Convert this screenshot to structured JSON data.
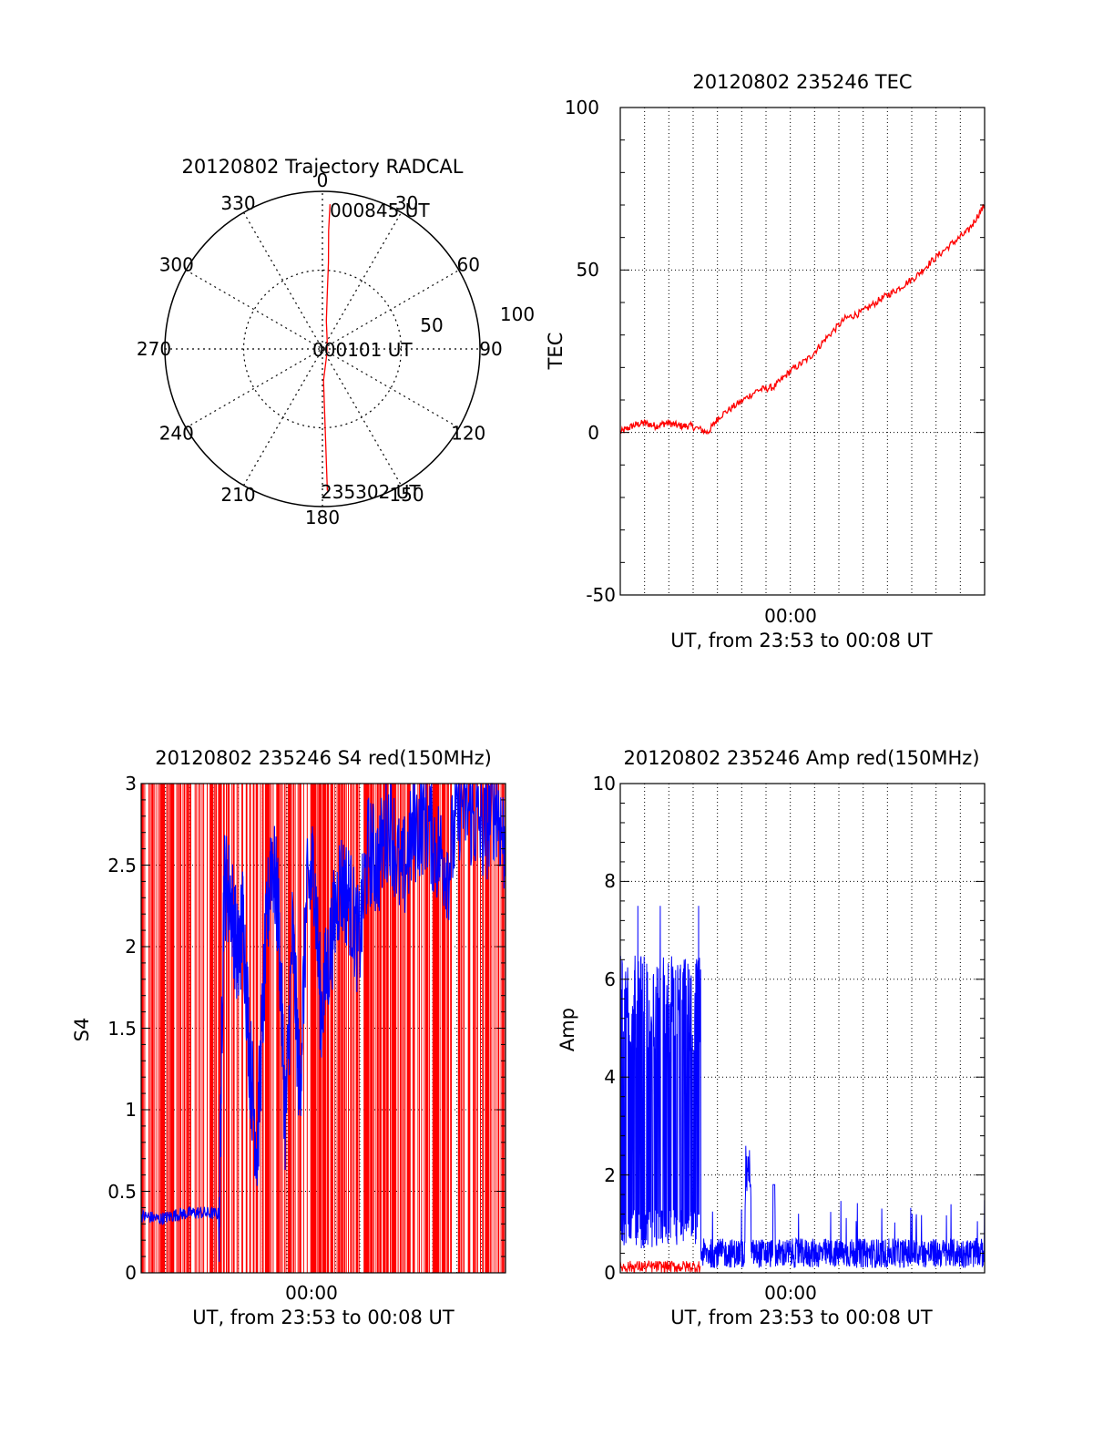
{
  "colors": {
    "red": "#ff0000",
    "blue": "#0000ff",
    "axis": "#000000",
    "grid": "#000000"
  },
  "chart_data": [
    {
      "id": "trajectory",
      "type": "polar",
      "title": "20120802 Trajectory RADCAL",
      "azimuth_labels": [
        "0",
        "30",
        "60",
        "90",
        "120",
        "150",
        "180",
        "210",
        "240",
        "270",
        "300",
        "330"
      ],
      "radial_labels": [
        "50",
        "100"
      ],
      "rlim": [
        0,
        100
      ],
      "grid": true,
      "start_label": "235302 UT",
      "mid_label": "000101 UT",
      "end_label": "000845 UT",
      "track": [
        {
          "az": 3,
          "r": 92
        },
        {
          "az": 3,
          "r": 75
        },
        {
          "az": 4,
          "r": 55
        },
        {
          "az": 5,
          "r": 35
        },
        {
          "az": 8,
          "r": 18
        },
        {
          "az": 30,
          "r": 6
        },
        {
          "az": 135,
          "r": 4
        },
        {
          "az": 178,
          "r": 20
        },
        {
          "az": 178,
          "r": 45
        },
        {
          "az": 178,
          "r": 70
        },
        {
          "az": 178,
          "r": 90
        }
      ]
    },
    {
      "id": "tec",
      "type": "line",
      "title": "20120802 235246 TEC",
      "ylabel": "TEC",
      "xlabel": "UT, from 23:53 to 00:08 UT",
      "x_tick_labels": [
        "00:00"
      ],
      "y_ticks": [
        "100",
        "50",
        "0",
        "-50"
      ],
      "ylim": [
        -50,
        100
      ],
      "xlim_minutes": [
        0,
        15.4
      ],
      "grid": true,
      "series": [
        {
          "color": "red",
          "x": [
            0,
            0.5,
            1,
            1.5,
            2,
            2.5,
            3,
            3.7,
            4.2,
            5,
            5.8,
            6.5,
            7.2,
            8,
            8.7,
            9.5,
            10.2,
            11,
            11.7,
            12.5,
            13.2,
            14,
            14.7,
            15.4
          ],
          "y": [
            0,
            2,
            3,
            2,
            3,
            2,
            2,
            0,
            5,
            9,
            13,
            14,
            19,
            23,
            29,
            35,
            37,
            41,
            44,
            48,
            53,
            58,
            62,
            70
          ]
        }
      ]
    },
    {
      "id": "s4",
      "type": "line",
      "title": "20120802 235246 S4 red(150MHz)",
      "ylabel": "S4",
      "xlabel": "UT, from 23:53 to 00:08 UT",
      "x_tick_labels": [
        "00:00"
      ],
      "y_ticks": [
        "3",
        "2.5",
        "2",
        "1.5",
        "1",
        "0.5",
        "0"
      ],
      "ylim": [
        0,
        3
      ],
      "xlim_minutes": [
        0,
        15.4
      ],
      "grid": true,
      "series": [
        {
          "color": "red",
          "pattern": "vertical spikes between 0 and 3 across the whole range"
        },
        {
          "color": "blue",
          "x": [
            0,
            0.8,
            1.6,
            2.4,
            3.3,
            3.5,
            3.8,
            4.1,
            4.3,
            4.6,
            4.9,
            5.2,
            5.5,
            5.8,
            6.1,
            6.4,
            6.7,
            7.0,
            7.3,
            7.6,
            8.0,
            8.4,
            8.8,
            9.2,
            9.6,
            10.0,
            10.5,
            11.0,
            11.5,
            12.0,
            12.5,
            13.0,
            13.5,
            14.0,
            14.5,
            15.0,
            15.4
          ],
          "y": [
            0.35,
            0.33,
            0.36,
            0.37,
            0.36,
            2.4,
            2.3,
            1.9,
            2.2,
            1.3,
            0.75,
            1.8,
            2.6,
            2.2,
            0.9,
            2.1,
            1.1,
            2.3,
            2.5,
            1.6,
            2.0,
            2.4,
            2.3,
            2.0,
            2.6,
            2.5,
            2.8,
            2.4,
            2.7,
            2.8,
            2.6,
            2.5,
            2.9,
            2.8,
            2.7,
            2.9,
            2.6
          ]
        }
      ]
    },
    {
      "id": "amp",
      "type": "line",
      "title": "20120802 235246 Amp red(150MHz)",
      "ylabel": "Amp",
      "xlabel": "UT, from 23:53 to 00:08 UT",
      "x_tick_labels": [
        "00:00"
      ],
      "y_ticks": [
        "10",
        "8",
        "6",
        "4",
        "2",
        "0"
      ],
      "ylim": [
        0,
        10
      ],
      "xlim_minutes": [
        0,
        15.4
      ],
      "grid": true,
      "series": [
        {
          "color": "blue",
          "pattern": "dense noise band 0.5 to 6.5 until minute 3.4, then low noise 0.1 to 0.8 with spikes near 2.6 at minute 5.4 and 1.8 at minute 6.5"
        },
        {
          "color": "red",
          "pattern": "low noise 0 to 0.3 until minute 3.4"
        }
      ]
    }
  ]
}
